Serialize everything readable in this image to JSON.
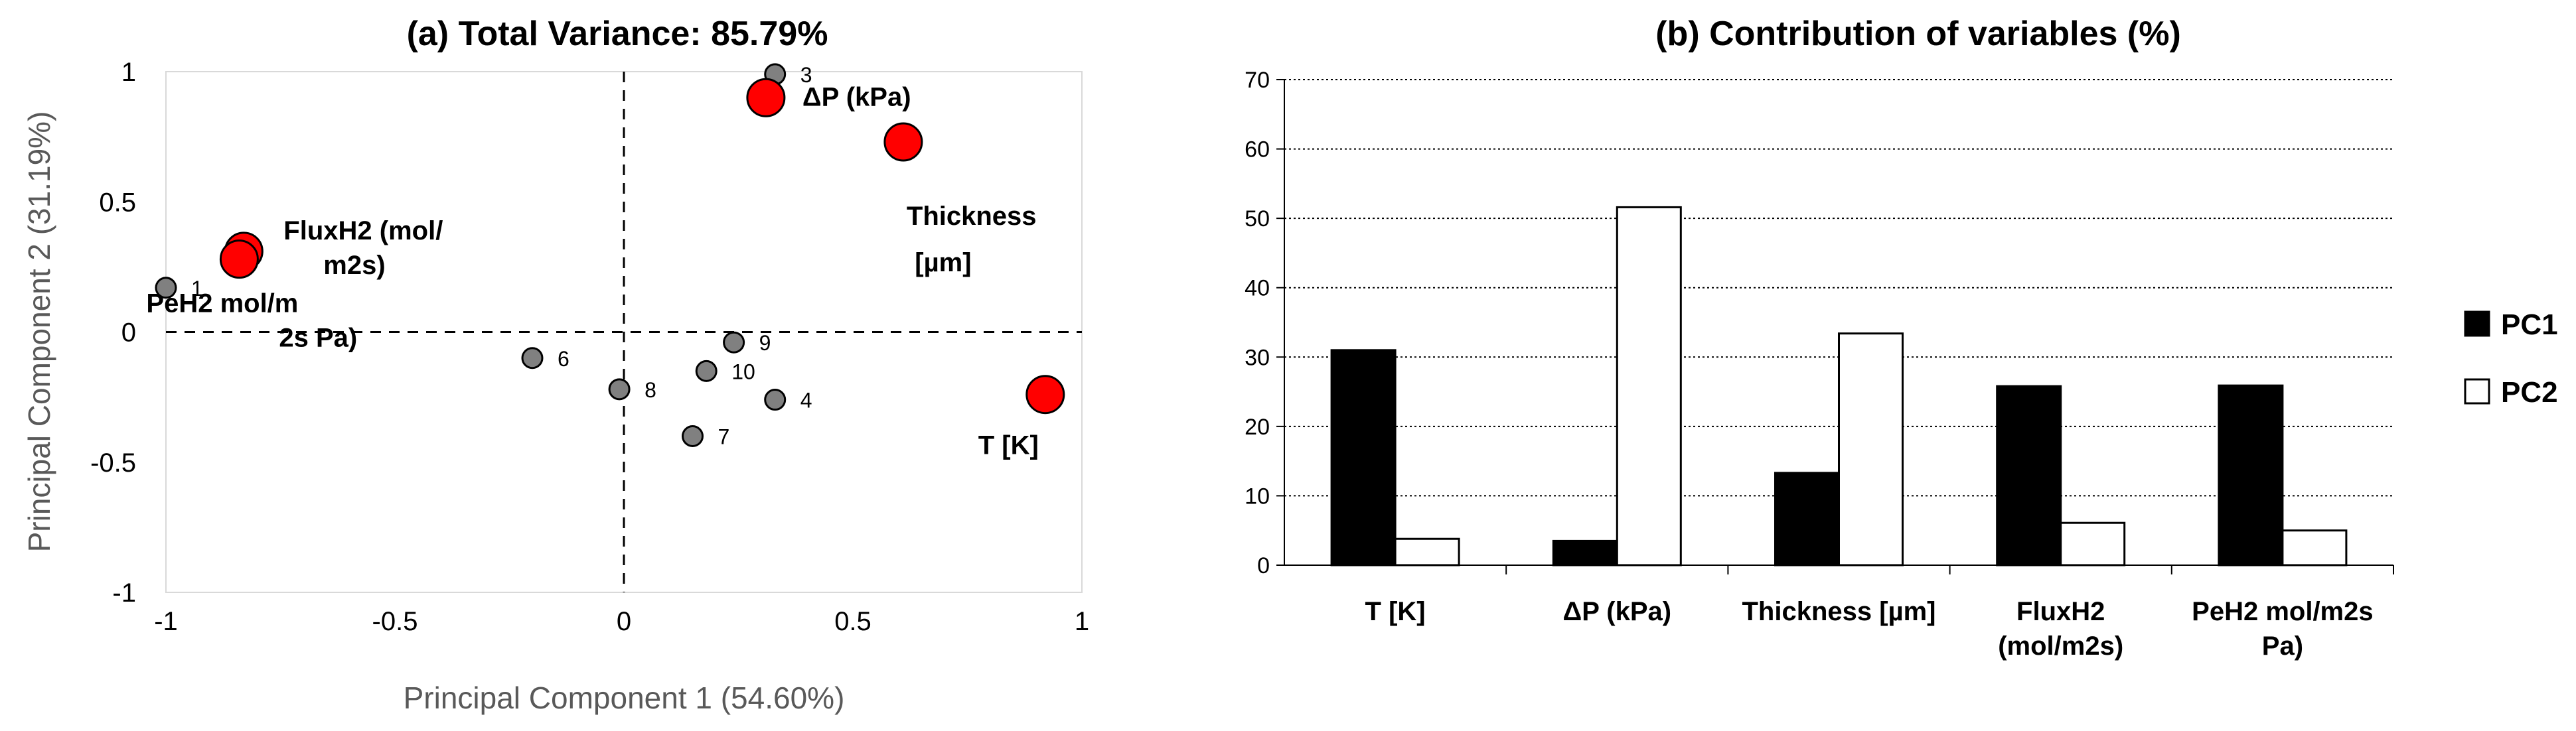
{
  "chart_data": [
    {
      "type": "scatter",
      "title": "(a) Total Variance: 85.79%",
      "xlabel": "Principal Component 1 (54.60%)",
      "ylabel": "Principal Component 2 (31.19%)",
      "xlim": [
        -1,
        1
      ],
      "ylim": [
        -1,
        1
      ],
      "xticks": [
        "-1",
        "-0.5",
        "0",
        "0.5",
        "1"
      ],
      "yticks": [
        "-1",
        "-0.5",
        "0",
        "0.5",
        "1"
      ],
      "observations": [
        {
          "label": "1",
          "x": -1.0,
          "y": 0.17
        },
        {
          "label": "3",
          "x": 0.33,
          "y": 0.99
        },
        {
          "label": "4",
          "x": 0.33,
          "y": -0.26
        },
        {
          "label": "6",
          "x": -0.2,
          "y": -0.1
        },
        {
          "label": "7",
          "x": 0.15,
          "y": -0.4
        },
        {
          "label": "8",
          "x": -0.01,
          "y": -0.22
        },
        {
          "label": "9",
          "x": 0.24,
          "y": -0.04
        },
        {
          "label": "10",
          "x": 0.18,
          "y": -0.15
        }
      ],
      "variables": [
        {
          "label_lines": [
            "FluxH2 (mol/",
            "m2s)"
          ],
          "x": -0.83,
          "y": 0.31
        },
        {
          "label_lines": [
            "PeH2 mol/m",
            "2s Pa)"
          ],
          "x": -0.84,
          "y": 0.28
        },
        {
          "label_lines": [
            "ΔP (kPa)"
          ],
          "x": 0.31,
          "y": 0.9
        },
        {
          "label_lines": [
            "Thickness",
            "[µm]"
          ],
          "x": 0.61,
          "y": 0.73
        },
        {
          "label_lines": [
            "T [K]"
          ],
          "x": 0.92,
          "y": -0.24
        }
      ],
      "colors": {
        "observation": "#808080",
        "variable": "#ff0000"
      }
    },
    {
      "type": "bar",
      "title": "(b) Contribution of variables (%)",
      "categories": [
        [
          "T [K]"
        ],
        [
          "ΔP (kPa)"
        ],
        [
          "Thickness [µm]"
        ],
        [
          "FluxH2",
          "(mol/m2s)"
        ],
        [
          "PeH2 mol/m2s",
          "Pa)"
        ]
      ],
      "series": [
        {
          "name": "PC1",
          "values": [
            31,
            3.5,
            13.3,
            25.8,
            25.9
          ],
          "color": "#000000"
        },
        {
          "name": "PC2",
          "values": [
            3.8,
            51.6,
            33.4,
            6.1,
            5.0
          ],
          "color": "#ffffff"
        }
      ],
      "ylim": [
        0,
        70
      ],
      "yticks": [
        "0",
        "10",
        "20",
        "30",
        "40",
        "50",
        "60",
        "70"
      ],
      "legend": "right"
    }
  ]
}
